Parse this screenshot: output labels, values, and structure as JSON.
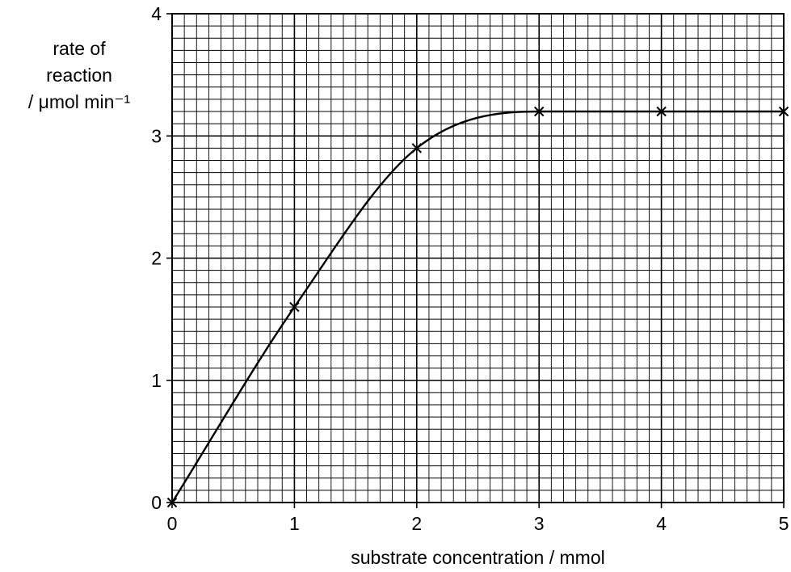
{
  "chart_data": {
    "type": "line",
    "title": "",
    "ylabel_lines": [
      "rate of",
      "reaction",
      "/ μmol min⁻¹"
    ],
    "xlabel": "substrate concentration / mmol",
    "xlim": [
      0,
      5
    ],
    "ylim": [
      0,
      4
    ],
    "x_ticks": [
      "0",
      "1",
      "2",
      "3",
      "4",
      "5"
    ],
    "y_ticks": [
      "0",
      "1",
      "2",
      "3",
      "4"
    ],
    "grid": true,
    "minor_grid_per_unit": 10,
    "series": [
      {
        "points": [
          {
            "x": 0,
            "y": 0
          },
          {
            "x": 1,
            "y": 1.6
          },
          {
            "x": 2,
            "y": 2.9
          },
          {
            "x": 3,
            "y": 3.2
          },
          {
            "x": 4,
            "y": 3.2
          },
          {
            "x": 5,
            "y": 3.2
          }
        ],
        "marker": "cross",
        "line": "smooth curve"
      }
    ]
  }
}
